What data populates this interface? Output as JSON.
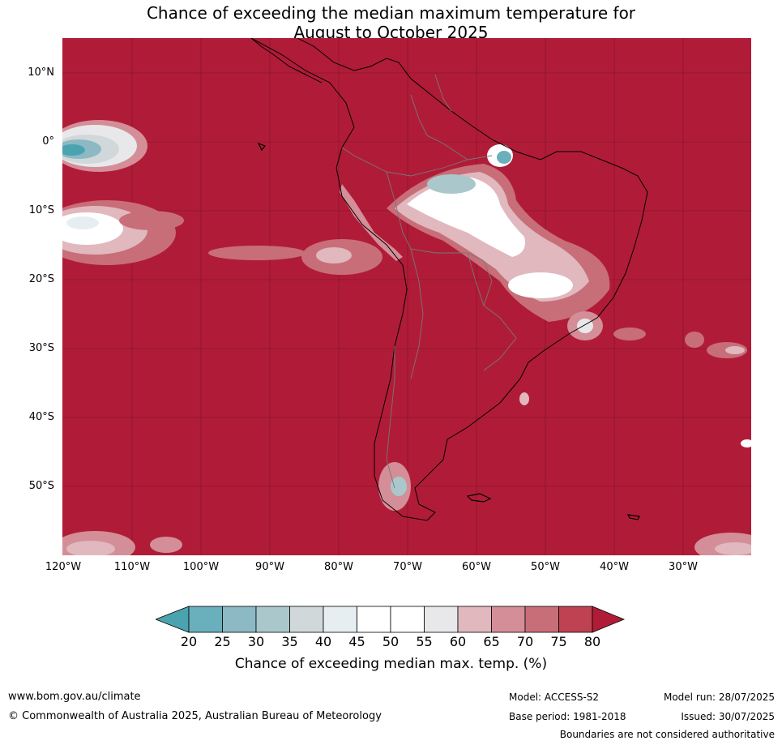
{
  "title_line1": "Chance of exceeding the median maximum temperature for",
  "title_line2": "August to October 2025",
  "lat_labels": [
    "10°N",
    "0°",
    "10°S",
    "20°S",
    "30°S",
    "40°S",
    "50°S"
  ],
  "lon_labels": [
    "120°W",
    "110°W",
    "100°W",
    "90°W",
    "80°W",
    "70°W",
    "60°W",
    "50°W",
    "40°W",
    "30°W"
  ],
  "colorbar": {
    "ticks": [
      "20",
      "25",
      "30",
      "35",
      "40",
      "45",
      "50",
      "55",
      "60",
      "65",
      "70",
      "75",
      "80"
    ],
    "colors": [
      "#4ba3b0",
      "#6aafbc",
      "#8cb9c4",
      "#aac8cc",
      "#d0d8da",
      "#e6eef2",
      "#ffffff",
      "#ffffff",
      "#e8e8ea",
      "#e0b8be",
      "#d48e98",
      "#c86e78",
      "#be4252",
      "#b01c38"
    ],
    "label": "Chance of exceeding median max. temp. (%)"
  },
  "footer": {
    "website": "www.bom.gov.au/climate",
    "copyright": "© Commonwealth of Australia 2025, Australian Bureau of Meteorology",
    "model": "Model: ACCESS-S2",
    "base_period": "Base period: 1981-2018",
    "model_run": "Model run: 28/07/2025",
    "issued": "Issued: 30/07/2025",
    "disclaimer": "Boundaries are not considered authoritative"
  }
}
